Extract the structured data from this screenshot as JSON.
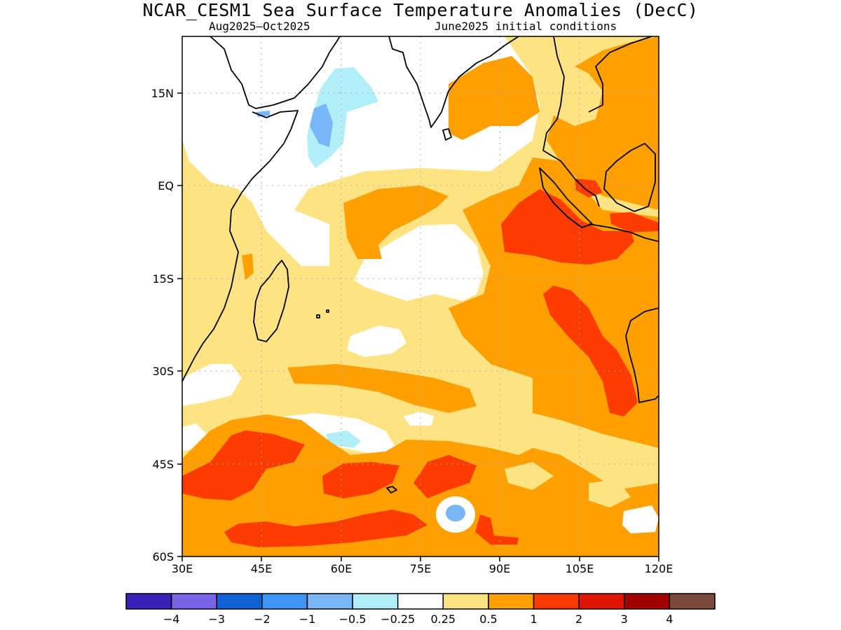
{
  "title": "NCAR_CESM1 Sea Surface Temperature Anomalies (DecC)",
  "subtitle_left": "Aug2025–Oct2025",
  "subtitle_right": "June2025 initial conditions",
  "axes": {
    "x_ticks": [
      "30E",
      "45E",
      "60E",
      "75E",
      "90E",
      "105E",
      "120E"
    ],
    "y_ticks": [
      "15N",
      "EQ",
      "15S",
      "30S",
      "45S",
      "60S"
    ],
    "lon_range": [
      30,
      120
    ],
    "lat_range": [
      -60,
      24
    ],
    "grid": "dotted"
  },
  "colorbar": {
    "colors": [
      "#3a1fb8",
      "#7b63e6",
      "#1260d6",
      "#3f96f2",
      "#78b6f7",
      "#b2eef8",
      "#ffffff",
      "#fde382",
      "#ffa000",
      "#ff3c00",
      "#e01400",
      "#a50000",
      "#7a4a3c"
    ],
    "labels": [
      "−4",
      "−3",
      "−2",
      "−1",
      "−0.5",
      "−0.25",
      "0.25",
      "0.5",
      "1",
      "2",
      "3",
      "4"
    ]
  },
  "legend_colors": {
    "yellow": "#fde382",
    "orange": "#ffa000",
    "red": "#ff3c00",
    "lightblue": "#b2eef8",
    "blue": "#78b6f7"
  }
}
